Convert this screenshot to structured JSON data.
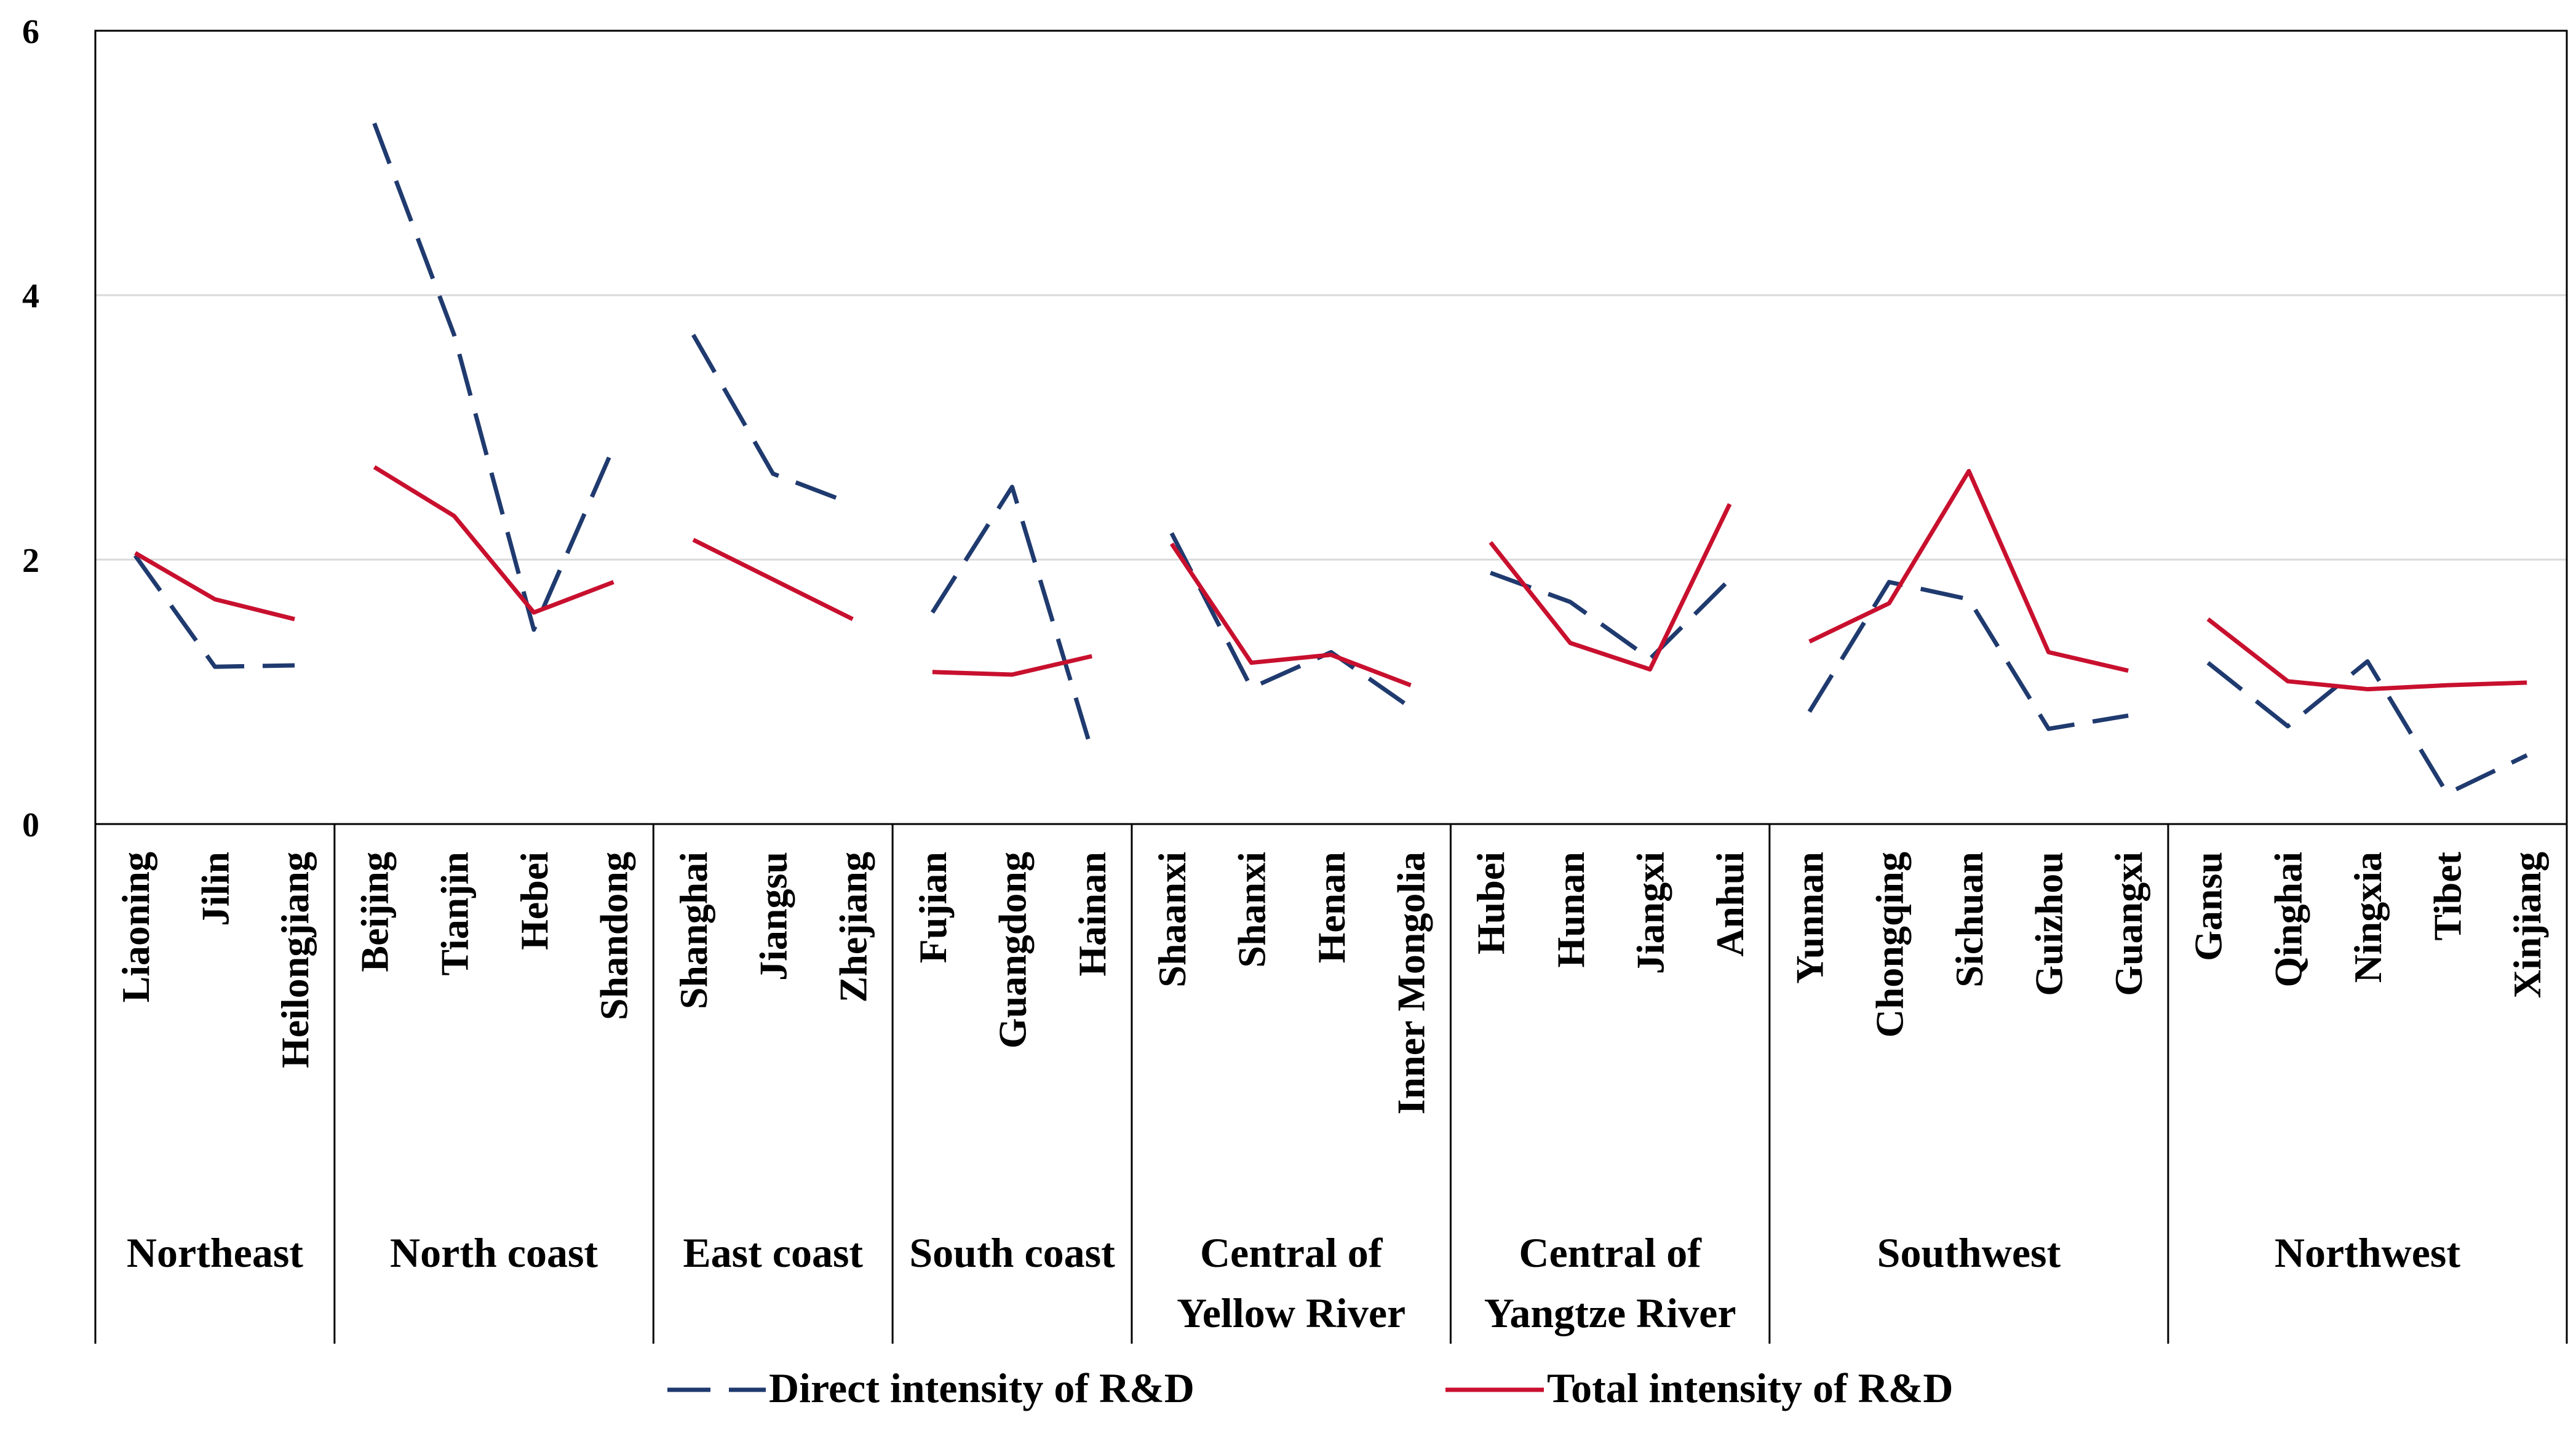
{
  "chart_data": {
    "type": "line",
    "title": "",
    "xlabel": "",
    "ylabel": "",
    "ylim": [
      0,
      6
    ],
    "yticks": [
      "0",
      "2",
      "4",
      "6"
    ],
    "grid": true,
    "legend_position": "bottom",
    "groups": [
      {
        "name": "Northeast",
        "categories": [
          "Liaoning",
          "Jilin",
          "Heilongjiang"
        ]
      },
      {
        "name": "North coast",
        "categories": [
          "Beijing",
          "Tianjin",
          "Hebei",
          "Shandong"
        ]
      },
      {
        "name": "East coast",
        "categories": [
          "Shanghai",
          "Jiangsu",
          "Zhejiang"
        ]
      },
      {
        "name": "South coast",
        "categories": [
          "Fujian",
          "Guangdong",
          "Hainan"
        ]
      },
      {
        "name": "Central of Yellow River",
        "categories": [
          "Shaanxi",
          "Shanxi",
          "Henan",
          "Inner Mongolia"
        ]
      },
      {
        "name": "Central of Yangtze River",
        "categories": [
          "Hubei",
          "Hunan",
          "Jiangxi",
          "Anhui"
        ]
      },
      {
        "name": "Southwest",
        "categories": [
          "Yunnan",
          "Chongqing",
          "Sichuan",
          "Guizhou",
          "Guangxi"
        ]
      },
      {
        "name": "Northwest",
        "categories": [
          "Gansu",
          "Qinghai",
          "Ningxia",
          "Tibet",
          "Xinjiang"
        ]
      }
    ],
    "series": [
      {
        "name": "Direct intensity of R&D",
        "style": "dashed",
        "color": "#1f3a6e",
        "values": [
          2.03,
          1.19,
          1.2,
          5.3,
          3.7,
          1.47,
          2.85,
          3.7,
          2.65,
          2.42,
          1.6,
          2.55,
          0.55,
          2.2,
          1.03,
          1.3,
          0.88,
          1.9,
          1.68,
          1.25,
          1.85,
          0.85,
          1.83,
          1.7,
          0.72,
          0.82,
          1.22,
          0.74,
          1.23,
          0.23,
          0.52
        ]
      },
      {
        "name": "Total intensity of R&D",
        "style": "solid",
        "color": "#c8102e",
        "values": [
          2.05,
          1.7,
          1.55,
          2.7,
          2.33,
          1.6,
          1.83,
          2.15,
          1.85,
          1.55,
          1.15,
          1.13,
          1.27,
          2.12,
          1.22,
          1.28,
          1.05,
          2.13,
          1.37,
          1.17,
          2.42,
          1.38,
          1.67,
          2.67,
          1.3,
          1.16,
          1.55,
          1.08,
          1.02,
          1.05,
          1.07
        ]
      }
    ]
  }
}
